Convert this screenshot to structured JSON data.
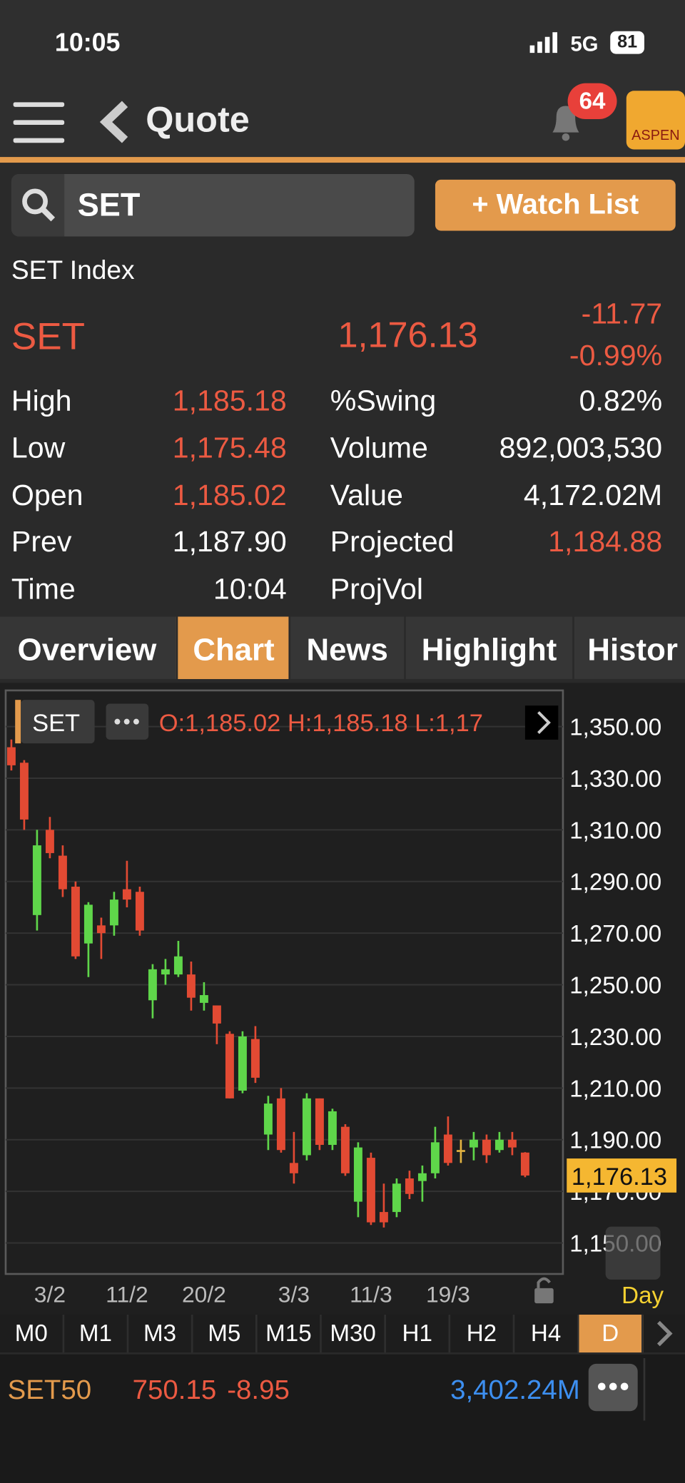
{
  "status": {
    "time": "10:05",
    "network": "5G",
    "battery": "81"
  },
  "header": {
    "title": "Quote",
    "badge": "64",
    "logo": "ASPEN"
  },
  "search": {
    "query": "SET",
    "button": "+ Watch List"
  },
  "quote": {
    "name": "SET Index",
    "symbol": "SET",
    "last": "1,176.13",
    "change": "-11.77",
    "percent": "-0.99%",
    "stats": [
      [
        "High",
        "1,185.18",
        "%Swing",
        "0.82%"
      ],
      [
        "Low",
        "1,175.48",
        "Volume",
        "892,003,530"
      ],
      [
        "Open",
        "1,185.02",
        "Value",
        "4,172.02M"
      ],
      [
        "Prev",
        "1,187.90",
        "Projected",
        "1,184.88"
      ],
      [
        "Time",
        "10:04",
        "ProjVol",
        null
      ]
    ]
  },
  "tabs": {
    "items": [
      "Overview",
      "Chart",
      "News",
      "Highlight",
      "Histor"
    ],
    "active": 1
  },
  "chart": {
    "type": "candlestick",
    "symbol": "SET",
    "ohlc_text": "O:1,185.02 H:1,185.18 L:1,17",
    "categories": [
      null,
      null,
      null,
      "3/2",
      null,
      null,
      null,
      null,
      null,
      "11/2",
      null,
      null,
      null,
      null,
      null,
      "20/2",
      null,
      null,
      null,
      null,
      null,
      null,
      "3/3",
      null,
      null,
      null,
      null,
      null,
      "11/3",
      null,
      null,
      null,
      null,
      null,
      "19/3",
      null,
      null,
      null,
      null,
      null,
      null
    ],
    "open": [
      1342,
      1336,
      1277,
      1310,
      1300,
      1288,
      1266,
      1273,
      1273,
      1287,
      1286,
      1244,
      1254,
      1254,
      1254,
      1243,
      1242,
      1231,
      1209,
      1229,
      1192,
      1206,
      1181,
      1184,
      1206,
      1188,
      1195,
      1166,
      1183,
      1162,
      1162,
      1175,
      1174,
      1177,
      1192,
      1186,
      1187,
      1190,
      1186,
      1190,
      1185.02
    ],
    "high": [
      1345,
      1337,
      1310,
      1315,
      1304,
      1290,
      1282,
      1276,
      1286,
      1298,
      1288,
      1258,
      1260,
      1267,
      1259,
      1251,
      1242,
      1232,
      1232,
      1234,
      1207,
      1210,
      1193,
      1208,
      1206,
      1202,
      1196,
      1189,
      1185,
      1173,
      1175,
      1178,
      1180,
      1195,
      1199,
      1190,
      1193,
      1192,
      1193,
      1193,
      1185.18
    ],
    "low": [
      1333,
      1310,
      1271,
      1299,
      1284,
      1260,
      1253,
      1260,
      1269,
      1280,
      1269,
      1237,
      1250,
      1253,
      1240,
      1240,
      1227,
      1206,
      1208,
      1212,
      1186,
      1185,
      1173,
      1182,
      1186,
      1186,
      1176,
      1160,
      1157,
      1156,
      1160,
      1167,
      1166,
      1175,
      1180,
      1181,
      1182,
      1181,
      1185,
      1184,
      1175.48
    ],
    "close": [
      1335,
      1314,
      1304,
      1301,
      1287,
      1261,
      1281,
      1270,
      1283,
      1283,
      1271,
      1256,
      1256,
      1261,
      1245,
      1246,
      1235,
      1206,
      1230,
      1214,
      1204,
      1186,
      1177,
      1206,
      1188,
      1201,
      1177,
      1187,
      1158,
      1158,
      1173,
      1169,
      1177,
      1189,
      1181,
      1186,
      1190,
      1184,
      1190,
      1187,
      1176.13
    ],
    "up_color": "#5fd64a",
    "down_color": "#e24a33",
    "flat_color": "#e3b341",
    "ylim": [
      1138,
      1364
    ],
    "yticks": [
      {
        "value": 1150,
        "label": "1,150.00"
      },
      {
        "value": 1170,
        "label": "1,170.00"
      },
      {
        "value": 1190,
        "label": "1,190.00"
      },
      {
        "value": 1210,
        "label": "1,210.00"
      },
      {
        "value": 1230,
        "label": "1,230.00"
      },
      {
        "value": 1250,
        "label": "1,250.00"
      },
      {
        "value": 1270,
        "label": "1,270.00"
      },
      {
        "value": 1290,
        "label": "1,290.00"
      },
      {
        "value": 1310,
        "label": "1,310.00"
      },
      {
        "value": 1330,
        "label": "1,330.00"
      },
      {
        "value": 1350,
        "label": "1,350.00"
      }
    ],
    "grid": true,
    "last_price": {
      "value": 1176.13,
      "label": "1,176.13"
    },
    "period": "Day"
  },
  "timeframes": {
    "items": [
      "M0",
      "M1",
      "M3",
      "M5",
      "M15",
      "M30",
      "H1",
      "H2",
      "H4",
      "D"
    ],
    "active": 9
  },
  "ticker": {
    "name": "SET50",
    "price": "750.15",
    "change": "-8.95",
    "value": "3,402.24M"
  }
}
